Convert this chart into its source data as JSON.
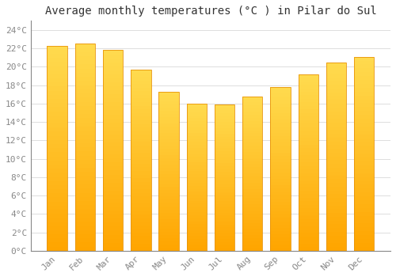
{
  "title": "Average monthly temperatures (°C ) in Pilar do Sul",
  "months": [
    "Jan",
    "Feb",
    "Mar",
    "Apr",
    "May",
    "Jun",
    "Jul",
    "Aug",
    "Sep",
    "Oct",
    "Nov",
    "Dec"
  ],
  "values": [
    22.3,
    22.5,
    21.8,
    19.7,
    17.3,
    16.0,
    15.9,
    16.8,
    17.8,
    19.2,
    20.5,
    21.1
  ],
  "bar_color_top": "#FFD966",
  "bar_color_bottom": "#FFA500",
  "bar_edge_color": "#E8940A",
  "background_color": "#FFFFFF",
  "plot_bg_color": "#FFFFFF",
  "grid_color": "#DDDDDD",
  "ylim": [
    0,
    25
  ],
  "ytick_step": 2,
  "title_fontsize": 10,
  "tick_fontsize": 8,
  "font_family": "monospace",
  "tick_color": "#888888"
}
